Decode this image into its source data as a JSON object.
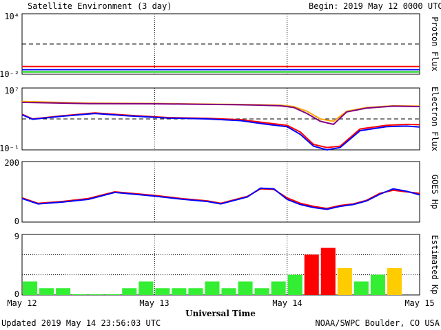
{
  "header": {
    "title": "Satellite Environment (3 day)",
    "begin_label": "Begin:",
    "begin_value": "2019 May 12 0000 UTC"
  },
  "footer": {
    "updated": "Updated 2019 May 14 23:56:03 UTC",
    "credit": "NOAA/SWPC Boulder, CO USA"
  },
  "xaxis": {
    "label": "Universal Time",
    "ticks": [
      "May 12",
      "May 13",
      "May 14",
      "May 15"
    ]
  },
  "chart_data": [
    {
      "type": "line",
      "ylabel": "Proton Flux",
      "yscale": "log",
      "ylim": [
        0.01,
        10000
      ],
      "tick_labels": [
        "10⁴",
        "10⁻²"
      ],
      "threshold": 10,
      "series_colors": [
        "#ff0000",
        "#0000ff",
        "#00d000"
      ],
      "series": [
        {
          "values": [
            0.058,
            0.058,
            0.058,
            0.058,
            0.058,
            0.058,
            0.058
          ]
        },
        {
          "values": [
            0.028,
            0.028,
            0.028,
            0.028,
            0.028,
            0.028,
            0.028
          ]
        },
        {
          "values": [
            0.017,
            0.017,
            0.017,
            0.017,
            0.017,
            0.017,
            0.017
          ]
        }
      ]
    },
    {
      "type": "line",
      "ylabel": "Electron Flux",
      "yscale": "log",
      "ylim": [
        0.1,
        10000000
      ],
      "tick_labels": [
        "10⁷",
        "10⁻¹"
      ],
      "threshold": 1000,
      "series_colors": [
        "#ffa500",
        "#800080",
        "#ff0000",
        "#0000ff"
      ],
      "series": [
        {
          "x": [
            0,
            0.5,
            1,
            1.3,
            1.6,
            1.8,
            1.95,
            2.05,
            2.15,
            2.25,
            2.35,
            2.45,
            2.6,
            2.8,
            3
          ],
          "values": [
            180000,
            110000,
            100000,
            85000,
            75000,
            68000,
            60000,
            40000,
            10000,
            1000,
            500,
            10000,
            30000,
            50000,
            45000
          ]
        },
        {
          "x": [
            0,
            0.5,
            1,
            1.3,
            1.6,
            1.8,
            1.95,
            2.05,
            2.15,
            2.25,
            2.35,
            2.45,
            2.6,
            2.8,
            3
          ],
          "values": [
            140000,
            95000,
            90000,
            80000,
            70000,
            60000,
            50000,
            30000,
            5000,
            500,
            200,
            8000,
            25000,
            45000,
            40000
          ]
        },
        {
          "x": [
            0,
            0.08,
            0.3,
            0.55,
            0.8,
            1.1,
            1.4,
            1.65,
            1.85,
            2.0,
            2.1,
            2.2,
            2.3,
            2.4,
            2.55,
            2.75,
            2.9,
            3
          ],
          "values": [
            4000,
            1000,
            2500,
            6000,
            3000,
            1500,
            1200,
            800,
            300,
            150,
            20,
            0.5,
            0.2,
            0.3,
            50,
            150,
            200,
            180
          ]
        },
        {
          "x": [
            0,
            0.08,
            0.3,
            0.55,
            0.8,
            1.1,
            1.4,
            1.65,
            1.85,
            2.0,
            2.1,
            2.2,
            2.3,
            2.4,
            2.55,
            2.75,
            2.9,
            3
          ],
          "values": [
            3500,
            900,
            2200,
            5000,
            2500,
            1300,
            1000,
            600,
            200,
            100,
            10,
            0.3,
            0.1,
            0.2,
            30,
            100,
            120,
            90
          ]
        }
      ]
    },
    {
      "type": "line",
      "ylabel": "GOES Hp",
      "ylim": [
        0,
        200
      ],
      "tick_labels": [
        "200",
        "0"
      ],
      "series_colors": [
        "#ff0000",
        "#0000ff"
      ],
      "series": [
        {
          "x": [
            0,
            0.12,
            0.3,
            0.5,
            0.7,
            1.0,
            1.2,
            1.4,
            1.5,
            1.7,
            1.8,
            1.9,
            2.0,
            2.1,
            2.2,
            2.3,
            2.4,
            2.5,
            2.6,
            2.7,
            2.8,
            2.9,
            3
          ],
          "values": [
            80,
            62,
            68,
            78,
            100,
            88,
            78,
            70,
            62,
            85,
            110,
            108,
            80,
            62,
            52,
            45,
            55,
            60,
            72,
            95,
            105,
            100,
            95
          ]
        },
        {
          "x": [
            0,
            0.12,
            0.3,
            0.5,
            0.7,
            1.0,
            1.2,
            1.4,
            1.5,
            1.7,
            1.8,
            1.9,
            2.0,
            2.1,
            2.2,
            2.3,
            2.4,
            2.5,
            2.6,
            2.7,
            2.8,
            2.9,
            3
          ],
          "values": [
            78,
            60,
            66,
            75,
            98,
            86,
            76,
            68,
            60,
            83,
            112,
            110,
            75,
            58,
            48,
            42,
            52,
            58,
            70,
            92,
            110,
            102,
            90
          ]
        }
      ]
    },
    {
      "type": "bar",
      "ylabel": "Estimated Kp",
      "ylim": [
        0,
        9
      ],
      "tick_labels": [
        "9",
        "0"
      ],
      "values": [
        2,
        1,
        1,
        0,
        0,
        0,
        1,
        2,
        1,
        1,
        1,
        2,
        1,
        2,
        1,
        2,
        3,
        6,
        7,
        4,
        2,
        3,
        4
      ],
      "colors": {
        "low": "#33ee33",
        "storm": "#ff0000",
        "active": "#ffcc00"
      }
    }
  ]
}
